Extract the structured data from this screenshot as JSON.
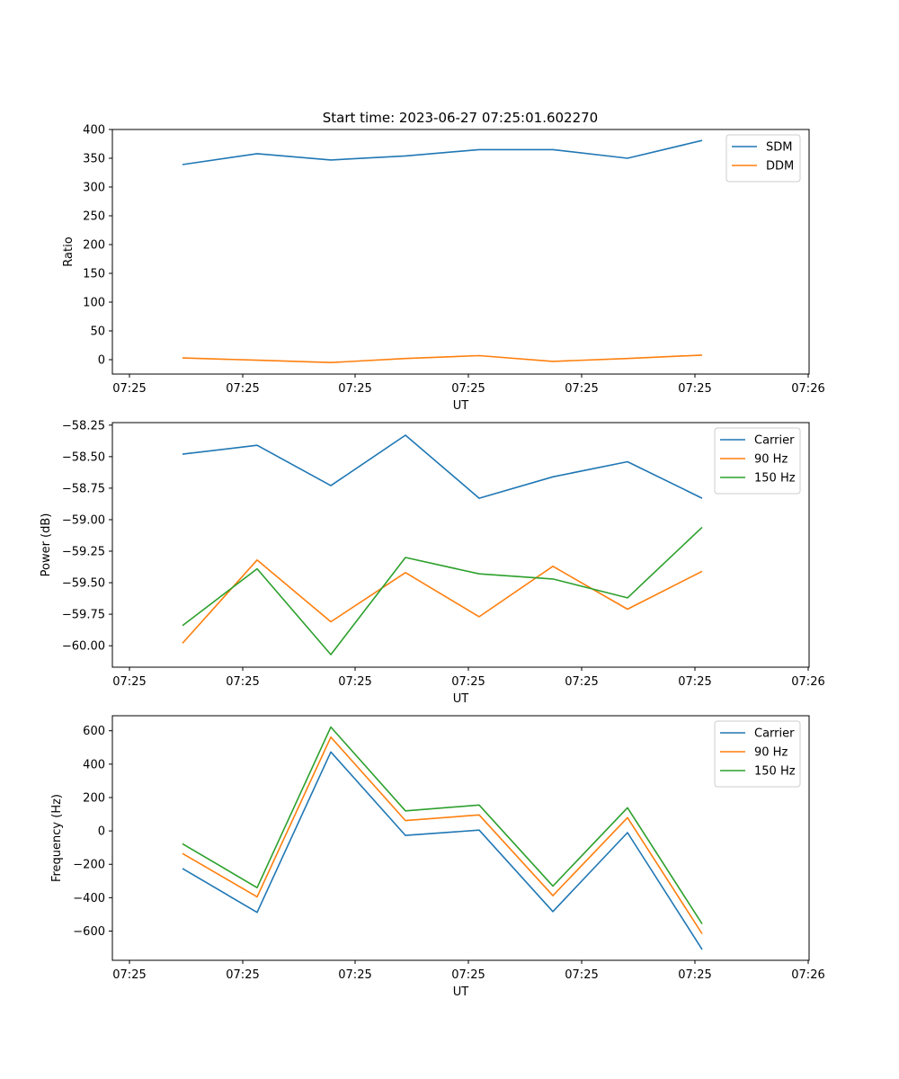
{
  "figure": {
    "title": "Start time: 2023-06-27 07:25:01.602270"
  },
  "colors": {
    "blue": "#1f77b4",
    "orange": "#ff7f0e",
    "green": "#2ca02c",
    "axis": "#000000"
  },
  "chart_data": [
    {
      "type": "line",
      "title": "Start time: 2023-06-27 07:25:01.602270",
      "xlabel": "UT",
      "ylabel": "Ratio",
      "x_tick_labels": [
        "07:25",
        "07:25",
        "07:25",
        "07:25",
        "07:25",
        "07:25",
        "07:25",
        "07:26"
      ],
      "y_ticks": [
        0,
        50,
        100,
        150,
        200,
        250,
        300,
        350,
        400
      ],
      "ylim": [
        -25,
        400
      ],
      "grid": false,
      "legend": "top-right",
      "series": [
        {
          "name": "SDM",
          "color": "#1f77b4",
          "values": [
            339,
            358,
            347,
            354,
            365,
            365,
            350,
            381
          ]
        },
        {
          "name": "DDM",
          "color": "#ff7f0e",
          "values": [
            3,
            -1,
            -5,
            2,
            7,
            -3,
            2,
            8
          ]
        }
      ]
    },
    {
      "type": "line",
      "xlabel": "UT",
      "ylabel": "Power (dB)",
      "x_tick_labels": [
        "07:25",
        "07:25",
        "07:25",
        "07:25",
        "07:25",
        "07:25",
        "07:25",
        "07:26"
      ],
      "y_ticks": [
        -60.0,
        -59.75,
        -59.5,
        -59.25,
        -59.0,
        -58.75,
        -58.5,
        -58.25
      ],
      "y_tick_labels": [
        "−60.00",
        "−59.75",
        "−59.50",
        "−59.25",
        "−59.00",
        "−58.75",
        "−58.50",
        "−58.25"
      ],
      "ylim": [
        -60.17,
        -58.23
      ],
      "grid": false,
      "legend": "top-right",
      "series": [
        {
          "name": "Carrier",
          "color": "#1f77b4",
          "values": [
            -58.48,
            -58.41,
            -58.73,
            -58.33,
            -58.83,
            -58.66,
            -58.54,
            -58.83
          ]
        },
        {
          "name": "90 Hz",
          "color": "#ff7f0e",
          "values": [
            -59.98,
            -59.32,
            -59.81,
            -59.42,
            -59.77,
            -59.37,
            -59.71,
            -59.41
          ]
        },
        {
          "name": "150 Hz",
          "color": "#2ca02c",
          "values": [
            -59.84,
            -59.39,
            -60.07,
            -59.3,
            -59.43,
            -59.47,
            -59.62,
            -59.06
          ]
        }
      ]
    },
    {
      "type": "line",
      "xlabel": "UT",
      "ylabel": "Frequency (Hz)",
      "x_tick_labels": [
        "07:25",
        "07:25",
        "07:25",
        "07:25",
        "07:25",
        "07:25",
        "07:25",
        "07:26"
      ],
      "y_ticks": [
        -600,
        -400,
        -200,
        0,
        200,
        400,
        600
      ],
      "y_tick_labels": [
        "−600",
        "−400",
        "−200",
        "0",
        "200",
        "400",
        "600"
      ],
      "ylim": [
        -775,
        690
      ],
      "grid": false,
      "legend": "top-right",
      "series": [
        {
          "name": "Carrier",
          "color": "#1f77b4",
          "values": [
            -225,
            -488,
            473,
            -27,
            5,
            -483,
            -10,
            -710
          ]
        },
        {
          "name": "90 Hz",
          "color": "#ff7f0e",
          "values": [
            -135,
            -395,
            562,
            62,
            96,
            -388,
            80,
            -616
          ]
        },
        {
          "name": "150 Hz",
          "color": "#2ca02c",
          "values": [
            -77,
            -340,
            622,
            120,
            155,
            -330,
            139,
            -557
          ]
        }
      ]
    }
  ]
}
